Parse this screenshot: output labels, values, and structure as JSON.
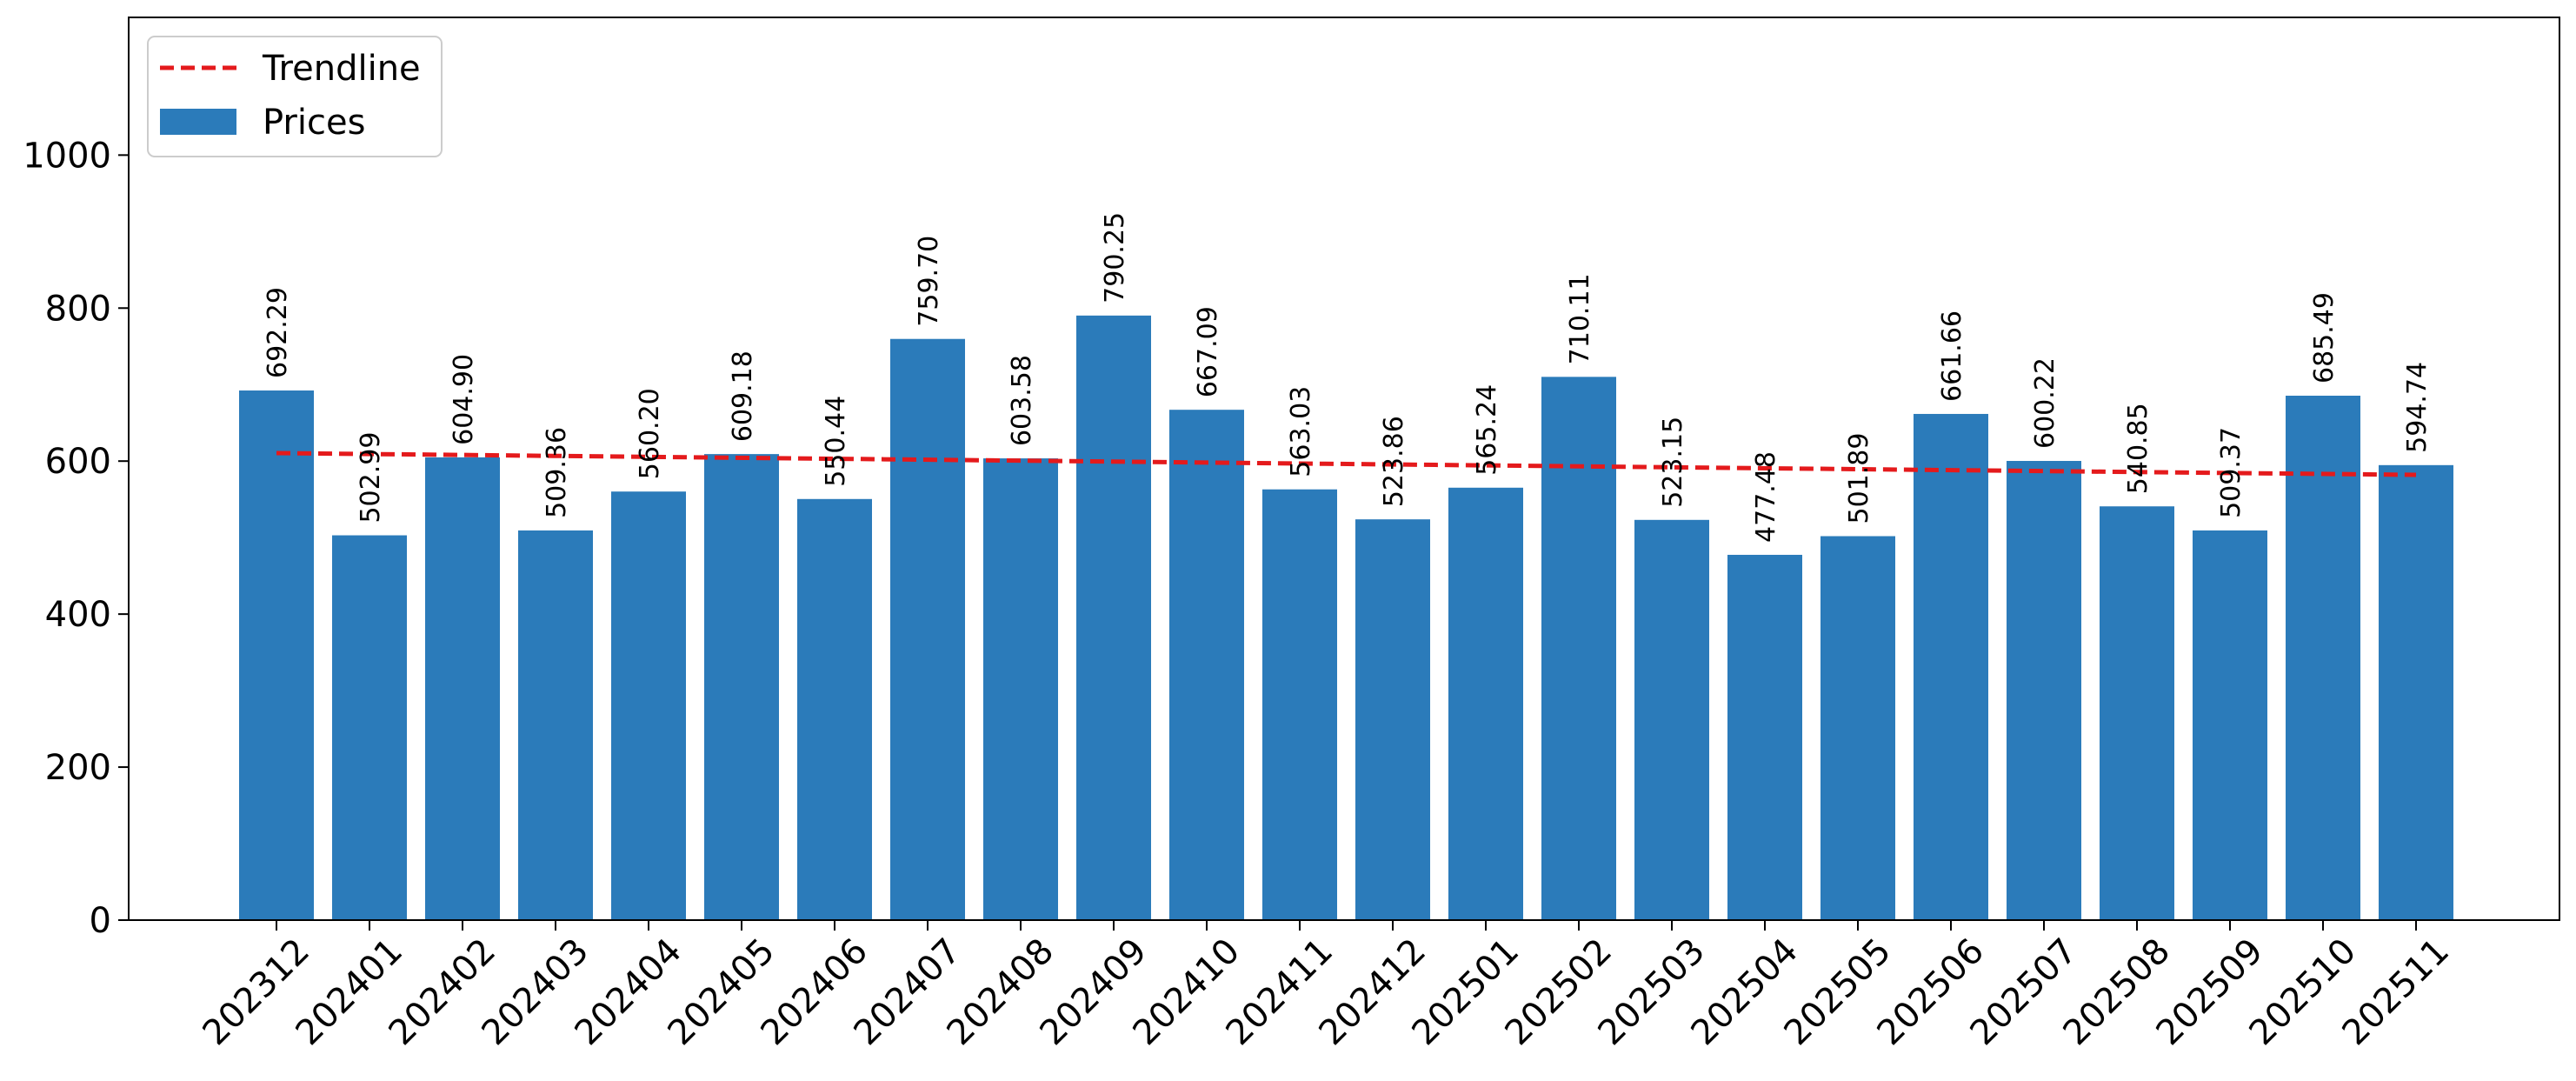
{
  "chart_data": {
    "type": "bar",
    "categories": [
      "202312",
      "202401",
      "202402",
      "202403",
      "202404",
      "202405",
      "202406",
      "202407",
      "202408",
      "202409",
      "202410",
      "202411",
      "202412",
      "202501",
      "202502",
      "202503",
      "202504",
      "202505",
      "202506",
      "202507",
      "202508",
      "202509",
      "202510",
      "202511"
    ],
    "series": [
      {
        "name": "Prices",
        "type": "bar",
        "color": "#2b7bba",
        "values": [
          692.29,
          502.99,
          604.9,
          509.36,
          560.2,
          609.18,
          550.44,
          759.7,
          603.58,
          790.25,
          667.09,
          563.03,
          523.86,
          565.24,
          710.11,
          523.15,
          477.48,
          501.89,
          661.66,
          600.22,
          540.85,
          509.37,
          685.49,
          594.74
        ],
        "labels": [
          "692.29",
          "502.99",
          "604.90",
          "509.36",
          "560.20",
          "609.18",
          "550.44",
          "759.70",
          "603.58",
          "790.25",
          "667.09",
          "563.03",
          "523.86",
          "565.24",
          "710.11",
          "523.15",
          "477.48",
          "501.89",
          "661.66",
          "600.22",
          "540.85",
          "509.37",
          "685.49",
          "594.74"
        ]
      },
      {
        "name": "Trendline",
        "type": "line",
        "style": "dashed",
        "color": "#e41a1c",
        "start": 610.5,
        "end": 582.0
      }
    ],
    "y_ticks": [
      "0",
      "200",
      "400",
      "600",
      "800",
      "1000"
    ],
    "ylim": [
      0,
      1180
    ],
    "title": "",
    "xlabel": "",
    "ylabel": "",
    "legend": {
      "position": "top-left",
      "entries": [
        "Trendline",
        "Prices"
      ]
    },
    "grid": false
  }
}
